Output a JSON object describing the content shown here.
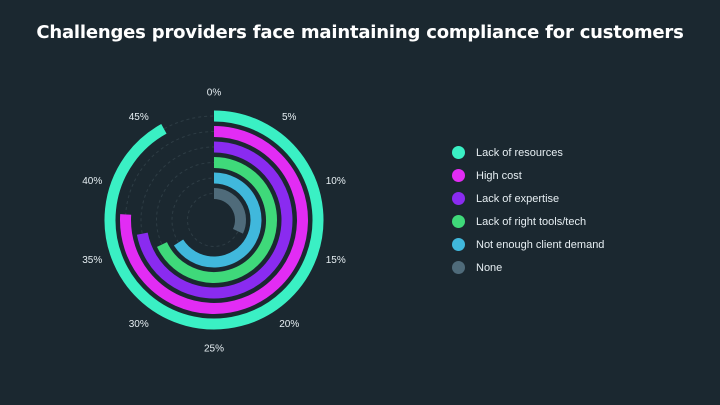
{
  "chart_data": {
    "type": "radial_bar",
    "title": "Challenges providers face maintaining compliance for customers",
    "axis": {
      "max": 50,
      "ticks": [
        0,
        5,
        10,
        15,
        20,
        25,
        30,
        35,
        40,
        45
      ],
      "tick_labels": [
        "0%",
        "5%",
        "10%",
        "15%",
        "20%",
        "25%",
        "30%",
        "35%",
        "40%",
        "45%"
      ]
    },
    "series": [
      {
        "name": "Lack of resources",
        "value": 46,
        "color": "#3af0c4"
      },
      {
        "name": "High cost",
        "value": 38,
        "color": "#e22cf4"
      },
      {
        "name": "Lack of expertise",
        "value": 36,
        "color": "#8a2bf0"
      },
      {
        "name": "Lack of right tools/tech",
        "value": 34,
        "color": "#3fd97a"
      },
      {
        "name": "Not enough client demand",
        "value": 33,
        "color": "#40b8dc"
      },
      {
        "name": "None",
        "value": 16,
        "color": "#4f6b7a"
      }
    ],
    "legend_position": "right",
    "colors": {
      "background": "#1b2830",
      "track": "#2e3d45"
    }
  }
}
